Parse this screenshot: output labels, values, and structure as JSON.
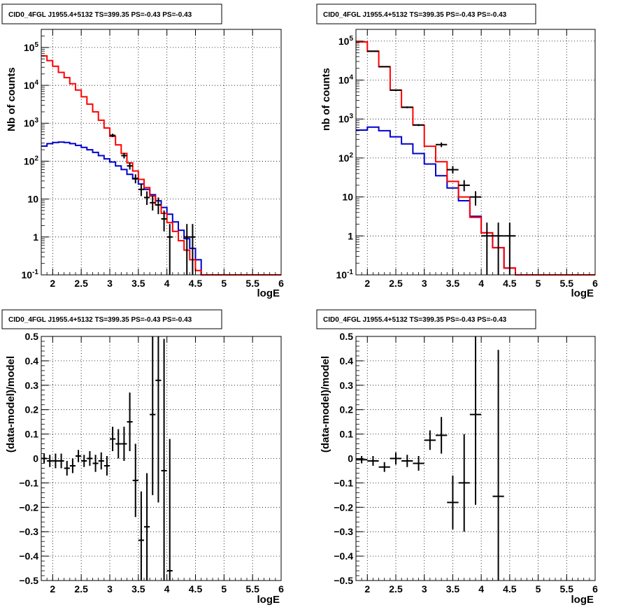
{
  "colors": {
    "data": "#000000",
    "model_total": "#ff0000",
    "model_other": "#0000cc",
    "grid": "#000000"
  },
  "chart_data": [
    {
      "type": "line",
      "title": "CID0_4FGL J1955.4+5132 TS=399.35 PS=-0.43 PS=-0.43",
      "xlabel": "logE",
      "ylabel": "Nb of counts",
      "xlim": [
        1.8,
        6
      ],
      "ylim": [
        0.1,
        300000
      ],
      "log_y": true,
      "grid": true,
      "x_ticks": [
        "2",
        "2.5",
        "3",
        "3.5",
        "4",
        "4.5",
        "5",
        "5.5",
        "6"
      ],
      "y_ticks": [
        "10^{-1}",
        "1",
        "10",
        "10^{2}",
        "10^{3}",
        "10^{4}",
        "10^{5}"
      ],
      "bin_edges": [
        1.8,
        1.9,
        2.0,
        2.1,
        2.2,
        2.3,
        2.4,
        2.5,
        2.6,
        2.7,
        2.8,
        2.9,
        3.0,
        3.1,
        3.2,
        3.3,
        3.4,
        3.5,
        3.6,
        3.7,
        3.8,
        3.9,
        4.0,
        4.1,
        4.2,
        4.3,
        4.4,
        4.5,
        4.6,
        4.7,
        4.8,
        4.9,
        5.0,
        5.1,
        5.2,
        5.3,
        5.4,
        5.5,
        5.6,
        5.7,
        5.8,
        5.9,
        6.0
      ],
      "series": [
        {
          "role": "model_total",
          "values": [
            60000,
            45000,
            32000,
            22000,
            16000,
            11000,
            7500,
            5000,
            3200,
            2000,
            1200,
            750,
            450,
            270,
            160,
            90,
            55,
            33,
            20,
            12,
            7,
            4.2,
            2.4,
            1.4,
            0.8,
            0.45,
            0.25,
            0.13,
            0.1,
            0.1,
            0.1,
            0.1,
            0.1,
            0.1,
            0.1,
            0.1,
            0.1,
            0.1,
            0.1,
            0.1,
            0.1,
            0.1
          ]
        },
        {
          "role": "model_other",
          "values": [
            250,
            290,
            310,
            320,
            310,
            290,
            260,
            230,
            200,
            170,
            140,
            115,
            95,
            75,
            60,
            45,
            34,
            25,
            18,
            13,
            9,
            6,
            4,
            2.5,
            1.5,
            0.9,
            0.5,
            0.25,
            0.1,
            0.1,
            0.1,
            0.1,
            0.1,
            0.1,
            0.1,
            0.1,
            0.1,
            0.1,
            0.1,
            0.1,
            0.1,
            0.1
          ]
        }
      ],
      "points": [
        {
          "x": 3.05,
          "y": 480,
          "ylo": 430,
          "yhi": 530,
          "xerr": 0.05
        },
        {
          "x": 3.25,
          "y": 140,
          "ylo": 118,
          "yhi": 165,
          "xerr": 0.05
        },
        {
          "x": 3.35,
          "y": 75,
          "ylo": 60,
          "yhi": 92,
          "xerr": 0.05
        },
        {
          "x": 3.45,
          "y": 35,
          "ylo": 26,
          "yhi": 45,
          "xerr": 0.05
        },
        {
          "x": 3.55,
          "y": 18,
          "ylo": 12,
          "yhi": 25,
          "xerr": 0.05
        },
        {
          "x": 3.65,
          "y": 11,
          "ylo": 7,
          "yhi": 16,
          "xerr": 0.05
        },
        {
          "x": 3.75,
          "y": 8,
          "ylo": 5,
          "yhi": 12,
          "xerr": 0.05
        },
        {
          "x": 3.85,
          "y": 7,
          "ylo": 4,
          "yhi": 11,
          "xerr": 0.05
        },
        {
          "x": 3.95,
          "y": 3,
          "ylo": 1.4,
          "yhi": 5,
          "xerr": 0.05
        },
        {
          "x": 4.05,
          "y": 1,
          "ylo": 0.1,
          "yhi": 2.2,
          "xerr": 0.05
        },
        {
          "x": 4.35,
          "y": 1,
          "ylo": 0.1,
          "yhi": 2.2,
          "xerr": 0.05
        },
        {
          "x": 4.45,
          "y": 1,
          "ylo": 0.1,
          "yhi": 2.2,
          "xerr": 0.05
        }
      ]
    },
    {
      "type": "line",
      "title": "CID0_4FGL J1955.4+5132 TS=399.35 PS=-0.43 PS=-0.43",
      "xlabel": "logE",
      "ylabel": "nb of counts",
      "xlim": [
        1.8,
        6
      ],
      "ylim": [
        0.1,
        200000
      ],
      "log_y": true,
      "grid": true,
      "x_ticks": [
        "2",
        "2.5",
        "3",
        "3.5",
        "4",
        "4.5",
        "5",
        "5.5",
        "6"
      ],
      "y_ticks": [
        "10^{-1}",
        "1",
        "10",
        "10^{2}",
        "10^{3}",
        "10^{4}",
        "10^{5}"
      ],
      "bin_edges": [
        1.8,
        2.0,
        2.2,
        2.4,
        2.6,
        2.8,
        3.0,
        3.2,
        3.4,
        3.6,
        3.8,
        4.0,
        4.2,
        4.4,
        4.6,
        4.8,
        5.0,
        5.2,
        5.4,
        5.6,
        5.8,
        6.0
      ],
      "series": [
        {
          "role": "model_total",
          "values": [
            95000,
            55000,
            22000,
            5500,
            2000,
            700,
            200,
            80,
            25,
            10,
            3,
            1.2,
            0.5,
            0.15,
            0.1,
            0.1,
            0.1,
            0.1,
            0.1,
            0.1,
            0.1
          ]
        },
        {
          "role": "model_other",
          "values": [
            520,
            620,
            500,
            350,
            230,
            130,
            70,
            35,
            17,
            8,
            3.2,
            1.2,
            0.5,
            0.15,
            0.1,
            0.1,
            0.1,
            0.1,
            0.1,
            0.1,
            0.1
          ]
        }
      ],
      "points": [
        {
          "x": 2.1,
          "y": 55000,
          "ylo": 54000,
          "yhi": 56000,
          "xerr": 0.1
        },
        {
          "x": 2.3,
          "y": 22000,
          "ylo": 21500,
          "yhi": 22500,
          "xerr": 0.1
        },
        {
          "x": 2.5,
          "y": 5500,
          "ylo": 5300,
          "yhi": 5700,
          "xerr": 0.1
        },
        {
          "x": 2.7,
          "y": 2000,
          "ylo": 1900,
          "yhi": 2100,
          "xerr": 0.1
        },
        {
          "x": 2.9,
          "y": 700,
          "ylo": 660,
          "yhi": 740,
          "xerr": 0.1
        },
        {
          "x": 3.3,
          "y": 220,
          "ylo": 190,
          "yhi": 250,
          "xerr": 0.1
        },
        {
          "x": 3.5,
          "y": 50,
          "ylo": 40,
          "yhi": 62,
          "xerr": 0.1
        },
        {
          "x": 3.7,
          "y": 20,
          "ylo": 14,
          "yhi": 27,
          "xerr": 0.1
        },
        {
          "x": 3.9,
          "y": 10,
          "ylo": 6,
          "yhi": 14,
          "xerr": 0.1
        },
        {
          "x": 4.1,
          "y": 1,
          "ylo": 0.1,
          "yhi": 2.2,
          "xerr": 0.1
        },
        {
          "x": 4.3,
          "y": 1,
          "ylo": 0.1,
          "yhi": 2.2,
          "xerr": 0.1
        },
        {
          "x": 4.5,
          "y": 1,
          "ylo": 0.1,
          "yhi": 2.2,
          "xerr": 0.1
        }
      ]
    },
    {
      "type": "scatter",
      "title": "CID0_4FGL J1955.4+5132 TS=399.35 PS=-0.43 PS=-0.43",
      "xlabel": "logE",
      "ylabel": "(data-model)/model",
      "xlim": [
        1.8,
        6
      ],
      "ylim": [
        -0.5,
        0.5
      ],
      "grid": true,
      "x_ticks": [
        "2",
        "2.5",
        "3",
        "3.5",
        "4",
        "4.5",
        "5",
        "5.5",
        "6"
      ],
      "y_ticks": [
        "−0.5",
        "−0.4",
        "−0.3",
        "−0.2",
        "−0.1",
        "0",
        "0.1",
        "0.2",
        "0.3",
        "0.4",
        "0.5"
      ],
      "points": [
        {
          "x": 1.85,
          "y": 0.0,
          "err": 0.02,
          "xerr": 0.05
        },
        {
          "x": 1.95,
          "y": -0.01,
          "err": 0.025,
          "xerr": 0.05
        },
        {
          "x": 2.05,
          "y": -0.01,
          "err": 0.03,
          "xerr": 0.05
        },
        {
          "x": 2.15,
          "y": -0.01,
          "err": 0.03,
          "xerr": 0.05
        },
        {
          "x": 2.25,
          "y": -0.04,
          "err": 0.03,
          "xerr": 0.05
        },
        {
          "x": 2.35,
          "y": -0.03,
          "err": 0.03,
          "xerr": 0.05
        },
        {
          "x": 2.45,
          "y": 0.01,
          "err": 0.025,
          "xerr": 0.05
        },
        {
          "x": 2.55,
          "y": -0.01,
          "err": 0.025,
          "xerr": 0.05
        },
        {
          "x": 2.65,
          "y": 0.0,
          "err": 0.03,
          "xerr": 0.05
        },
        {
          "x": 2.75,
          "y": -0.02,
          "err": 0.035,
          "xerr": 0.05
        },
        {
          "x": 2.85,
          "y": -0.01,
          "err": 0.035,
          "xerr": 0.05
        },
        {
          "x": 2.95,
          "y": -0.03,
          "err": 0.04,
          "xerr": 0.05
        },
        {
          "x": 3.05,
          "y": 0.08,
          "err": 0.05,
          "xerr": 0.05
        },
        {
          "x": 3.15,
          "y": 0.06,
          "err": 0.06,
          "xerr": 0.05
        },
        {
          "x": 3.25,
          "y": 0.06,
          "err": 0.07,
          "xerr": 0.05
        },
        {
          "x": 3.35,
          "y": 0.15,
          "err": 0.12,
          "xerr": 0.05
        },
        {
          "x": 3.45,
          "y": -0.09,
          "err": 0.15,
          "xerr": 0.05
        },
        {
          "x": 3.55,
          "y": -0.335,
          "err": 0.2,
          "xerr": 0.05
        },
        {
          "x": 3.65,
          "y": -0.28,
          "err": 0.22,
          "xerr": 0.05
        },
        {
          "x": 3.75,
          "y": 0.18,
          "err": 0.33,
          "xerr": 0.05
        },
        {
          "x": 3.85,
          "y": 0.32,
          "err": 0.5,
          "xerr": 0.05
        },
        {
          "x": 3.95,
          "y": -0.05,
          "err": 0.54,
          "xerr": 0.05
        },
        {
          "x": 4.05,
          "y": -0.46,
          "err": 0.54,
          "xerr": 0.05
        }
      ]
    },
    {
      "type": "scatter",
      "title": "CID0_4FGL J1955.4+5132 TS=399.35 PS=-0.43 PS=-0.43",
      "xlabel": "logE",
      "ylabel": "(data-model)/model",
      "xlim": [
        1.8,
        6
      ],
      "ylim": [
        -0.5,
        0.5
      ],
      "grid": true,
      "x_ticks": [
        "2",
        "2.5",
        "3",
        "3.5",
        "4",
        "4.5",
        "5",
        "5.5",
        "6"
      ],
      "y_ticks": [
        "−0.5",
        "−0.4",
        "−0.3",
        "−0.2",
        "−0.1",
        "0",
        "0.1",
        "0.2",
        "0.3",
        "0.4",
        "0.5"
      ],
      "points": [
        {
          "x": 1.9,
          "y": -0.005,
          "err": 0.015,
          "xerr": 0.1
        },
        {
          "x": 2.1,
          "y": -0.01,
          "err": 0.02,
          "xerr": 0.1
        },
        {
          "x": 2.3,
          "y": -0.035,
          "err": 0.02,
          "xerr": 0.1
        },
        {
          "x": 2.5,
          "y": 0.0,
          "err": 0.025,
          "xerr": 0.1
        },
        {
          "x": 2.7,
          "y": -0.01,
          "err": 0.025,
          "xerr": 0.1
        },
        {
          "x": 2.9,
          "y": -0.02,
          "err": 0.03,
          "xerr": 0.1
        },
        {
          "x": 3.1,
          "y": 0.075,
          "err": 0.04,
          "xerr": 0.1
        },
        {
          "x": 3.3,
          "y": 0.095,
          "err": 0.075,
          "xerr": 0.1
        },
        {
          "x": 3.5,
          "y": -0.18,
          "err": 0.11,
          "xerr": 0.1
        },
        {
          "x": 3.7,
          "y": -0.1,
          "err": 0.2,
          "xerr": 0.1
        },
        {
          "x": 3.9,
          "y": 0.18,
          "err": 0.37,
          "xerr": 0.1
        },
        {
          "x": 4.3,
          "y": -0.155,
          "err": 0.6,
          "xerr": 0.1
        }
      ]
    }
  ]
}
